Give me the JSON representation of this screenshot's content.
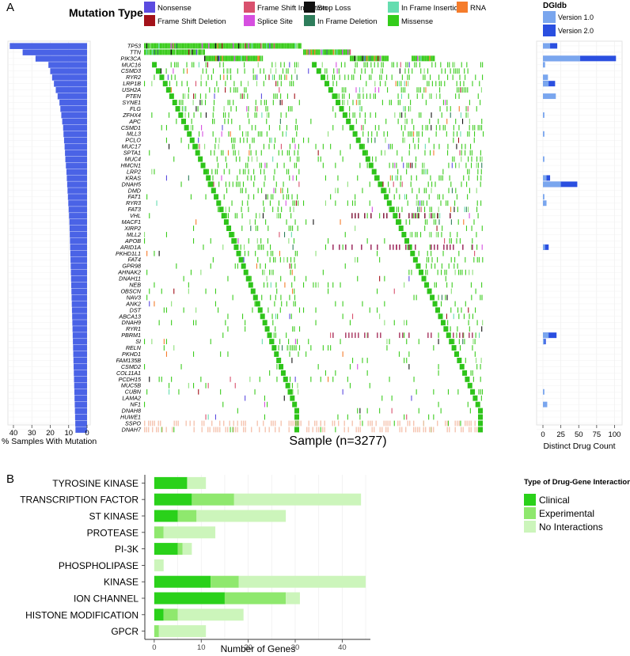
{
  "panel_a": {
    "label": "A",
    "legend_title": "Mutation Type",
    "mutation_types": [
      {
        "name": "Nonsense",
        "color": "#5b4be0"
      },
      {
        "name": "Frame Shift Insertion",
        "color": "#d9516e"
      },
      {
        "name": "Stop Loss",
        "color": "#111111"
      },
      {
        "name": "In Frame Insertion",
        "color": "#66ddb0"
      },
      {
        "name": "RNA",
        "color": "#f57c2b"
      },
      {
        "name": "Frame Shift Deletion",
        "color": "#a3121a"
      },
      {
        "name": "Splice Site",
        "color": "#d64fe0"
      },
      {
        "name": "In Frame Deletion",
        "color": "#2e7d5b"
      },
      {
        "name": "Missense",
        "color": "#33cc1a"
      }
    ],
    "dgidb_title": "DGIdb",
    "dgidb_versions": [
      {
        "name": "Version 1.0",
        "color": "#7aa6ee"
      },
      {
        "name": "Version 2.0",
        "color": "#2a4fe0"
      }
    ],
    "sample_label": "Sample (n=3277)",
    "left_axis_label": "% Samples With Mutation",
    "right_axis_label": "Distinct Drug Count"
  },
  "panel_b": {
    "label": "B",
    "legend_title": "Type of Drug-Gene Interaction",
    "legend": [
      {
        "name": "Clinical",
        "color": "#2ad11a"
      },
      {
        "name": "Experimental",
        "color": "#8fe86e"
      },
      {
        "name": "No Interactions",
        "color": "#ccf5bb"
      }
    ],
    "xlabel": "Number of Genes"
  },
  "chart_data": [
    {
      "type": "bar",
      "title": "% Samples With Mutation",
      "orientation": "horizontal",
      "xlim": [
        43,
        0
      ],
      "x_ticks": [
        "40",
        "30",
        "20",
        "10",
        "0"
      ],
      "categories": [
        "TP53",
        "TTN",
        "PIK3CA",
        "MUC16",
        "CSMD3",
        "RYR2",
        "LRP1B",
        "USH2A",
        "PTEN",
        "SYNE1",
        "FLG",
        "ZFHX4",
        "APC",
        "CSMD1",
        "MLL3",
        "PCLO",
        "MUC17",
        "SPTA1",
        "MUC4",
        "HMCN1",
        "LRP2",
        "KRAS",
        "DNAH5",
        "DMD",
        "FAT1",
        "RYR3",
        "FAT3",
        "VHL",
        "MACF1",
        "XIRP2",
        "MLL2",
        "APOB",
        "ARID1A",
        "PKHD1L1",
        "FAT4",
        "GPR98",
        "AHNAK2",
        "DNAH11",
        "NEB",
        "OBSCN",
        "NAV3",
        "ANK2",
        "DST",
        "ABCA13",
        "DNAH9",
        "RYR1",
        "PBRM1",
        "SI",
        "RELN",
        "PKHD1",
        "FAM135B",
        "CSMD2",
        "COL11A1",
        "PCDH15",
        "MUC5B",
        "CUBN",
        "LAMA2",
        "NF1",
        "DNAH8",
        "HUWE1",
        "SSPO",
        "DNAH7"
      ],
      "values": [
        42,
        35,
        28,
        21,
        20,
        19,
        18,
        17,
        16,
        15,
        14.5,
        14,
        13.5,
        13,
        12.8,
        12.5,
        12.2,
        12,
        11.8,
        11.5,
        11.2,
        11,
        10.8,
        10.6,
        10.4,
        10.2,
        10,
        9.8,
        9.6,
        9.5,
        9.4,
        9.3,
        9.2,
        9.1,
        9,
        8.9,
        8.8,
        8.7,
        8.6,
        8.5,
        8.4,
        8.3,
        8.2,
        8.1,
        8,
        7.9,
        7.8,
        7.7,
        7.6,
        7.5,
        7.4,
        7.3,
        7.2,
        7.1,
        7,
        6.9,
        6.8,
        6.7,
        6.6,
        6.5,
        6.4,
        6.3
      ]
    },
    {
      "type": "heatmap",
      "title": "Sample (n=3277)",
      "description_of_content": "mutation oncoprint, genes x samples",
      "samples": 3277,
      "rows": [
        "TP53",
        "TTN",
        "PIK3CA",
        "MUC16",
        "CSMD3",
        "RYR2",
        "LRP1B",
        "USH2A",
        "PTEN",
        "SYNE1",
        "FLG",
        "ZFHX4",
        "APC",
        "CSMD1",
        "MLL3",
        "PCLO",
        "MUC17",
        "SPTA1",
        "MUC4",
        "HMCN1",
        "LRP2",
        "KRAS",
        "DNAH5",
        "DMD",
        "FAT1",
        "RYR3",
        "FAT3",
        "VHL",
        "MACF1",
        "XIRP2",
        "MLL2",
        "APOB",
        "ARID1A",
        "PKHD1L1",
        "FAT4",
        "GPR98",
        "AHNAK2",
        "DNAH11",
        "NEB",
        "OBSCN",
        "NAV3",
        "ANK2",
        "DST",
        "ABCA13",
        "DNAH9",
        "RYR1",
        "PBRM1",
        "SI",
        "RELN",
        "PKHD1",
        "FAM135B",
        "CSMD2",
        "COL11A1",
        "PCDH15",
        "MUC5B",
        "CUBN",
        "LAMA2",
        "NF1",
        "DNAH8",
        "HUWE1",
        "SSPO",
        "DNAH7"
      ]
    },
    {
      "type": "bar",
      "title": "Distinct Drug Count",
      "orientation": "horizontal",
      "xlim": [
        0,
        105
      ],
      "x_ticks": [
        0,
        25,
        50,
        75,
        100
      ],
      "series_names": [
        "Version 1.0",
        "Version 2.0"
      ],
      "categories": [
        "TP53",
        "PIK3CA",
        "MUC16",
        "RYR2",
        "LRP1B",
        "PTEN",
        "ZFHX4",
        "MLL3",
        "MUC4",
        "KRAS",
        "DNAH5",
        "FAT1",
        "RYR3",
        "ARID1A",
        "PBRM1",
        "SI",
        "CUBN",
        "NF1"
      ],
      "version1": [
        10,
        52,
        3,
        7,
        8,
        18,
        2,
        2,
        2,
        5,
        25,
        2,
        5,
        3,
        8,
        2,
        2,
        6
      ],
      "version2": [
        20,
        102,
        3,
        7,
        17,
        18,
        2,
        2,
        2,
        10,
        48,
        2,
        5,
        8,
        19,
        4,
        2,
        6
      ]
    },
    {
      "type": "bar",
      "stacked": true,
      "orientation": "horizontal",
      "title": "Type of Drug-Gene Interaction",
      "xlabel": "Number of Genes",
      "xlim": [
        -2,
        46
      ],
      "x_ticks": [
        0,
        10,
        20,
        30,
        40
      ],
      "categories": [
        "TYROSINE KINASE",
        "TRANSCRIPTION FACTOR",
        "ST KINASE",
        "PROTEASE",
        "PI-3K",
        "PHOSPHOLIPASE",
        "KINASE",
        "ION CHANNEL",
        "HISTONE MODIFICATION",
        "GPCR"
      ],
      "series": [
        {
          "name": "Clinical",
          "values": [
            7,
            8,
            5,
            0,
            5,
            0,
            12,
            15,
            2,
            0
          ]
        },
        {
          "name": "Experimental",
          "values": [
            0,
            9,
            4,
            2,
            1,
            0,
            6,
            13,
            3,
            1
          ]
        },
        {
          "name": "No Interactions",
          "values": [
            4,
            27,
            19,
            11,
            2,
            2,
            27,
            3,
            14,
            10
          ]
        }
      ]
    }
  ]
}
